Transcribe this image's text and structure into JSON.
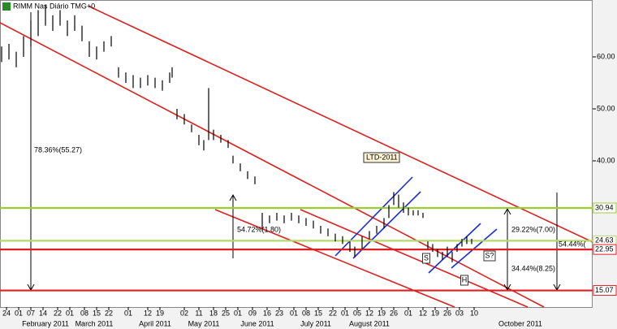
{
  "chart_data": {
    "type": "ohlc",
    "title": "RIMM Nas Diário TMG+0",
    "xlim": [
      -2.67,
      240.67
    ],
    "ylim": [
      11.875,
      70.94
    ],
    "yticks": [
      {
        "value": 40,
        "label": "40.00"
      },
      {
        "value": 50,
        "label": "50.00"
      },
      {
        "value": 60,
        "label": "60.00"
      }
    ],
    "xticks": [
      {
        "value": 0,
        "label": "24"
      },
      {
        "value": 5,
        "label": "01"
      },
      {
        "value": 10,
        "label": "07"
      },
      {
        "value": 15,
        "label": "14"
      },
      {
        "value": 21,
        "label": "22"
      },
      {
        "value": 26,
        "label": "01"
      },
      {
        "value": 32,
        "label": "08"
      },
      {
        "value": 37,
        "label": "15"
      },
      {
        "value": 42,
        "label": "22"
      },
      {
        "value": 50,
        "label": "01"
      },
      {
        "value": 58,
        "label": "12"
      },
      {
        "value": 63,
        "label": "19"
      },
      {
        "value": 73,
        "label": "02"
      },
      {
        "value": 79,
        "label": "11"
      },
      {
        "value": 85,
        "label": "18"
      },
      {
        "value": 90,
        "label": "25"
      },
      {
        "value": 95,
        "label": "01"
      },
      {
        "value": 101,
        "label": "09"
      },
      {
        "value": 107,
        "label": "16"
      },
      {
        "value": 112,
        "label": "23"
      },
      {
        "value": 118,
        "label": "01"
      },
      {
        "value": 123,
        "label": "08"
      },
      {
        "value": 128,
        "label": "15"
      },
      {
        "value": 134,
        "label": "22"
      },
      {
        "value": 139,
        "label": "01"
      },
      {
        "value": 144,
        "label": "05"
      },
      {
        "value": 149,
        "label": "12"
      },
      {
        "value": 154,
        "label": "19"
      },
      {
        "value": 159,
        "label": "26"
      },
      {
        "value": 165,
        "label": "01"
      },
      {
        "value": 171,
        "label": "12"
      },
      {
        "value": 176,
        "label": "19"
      },
      {
        "value": 181,
        "label": "26"
      },
      {
        "value": 186,
        "label": "03"
      },
      {
        "value": 192,
        "label": "10"
      }
    ],
    "months": [
      {
        "value": 16,
        "label": "February 2011"
      },
      {
        "value": 36,
        "label": "March 2011"
      },
      {
        "value": 61,
        "label": "April 2011"
      },
      {
        "value": 81,
        "label": "May 2011"
      },
      {
        "value": 103,
        "label": "June 2011"
      },
      {
        "value": 127,
        "label": "July 2011"
      },
      {
        "value": 149,
        "label": "August 2011"
      },
      {
        "value": 211,
        "label": "October 2011"
      }
    ],
    "color": "#000000",
    "x": [
      -2,
      1,
      4,
      7,
      10,
      13,
      16,
      19,
      22,
      25,
      28,
      31,
      34,
      37,
      40,
      43,
      46,
      49,
      52,
      55,
      58,
      61,
      64,
      67,
      68,
      70,
      73,
      76,
      79,
      81,
      83,
      85,
      88,
      91,
      93,
      96,
      99,
      102,
      105,
      108,
      111,
      114,
      117,
      120,
      123,
      126,
      129,
      132,
      135,
      138,
      141,
      143,
      146,
      149,
      152,
      155,
      157,
      159,
      161,
      163,
      165,
      167,
      169,
      171,
      173,
      175,
      177,
      179,
      181,
      183,
      185,
      187,
      189,
      191
    ],
    "high": [
      62,
      62.5,
      61,
      64,
      67,
      69,
      70,
      68,
      69,
      67,
      68,
      66,
      63,
      62,
      63,
      64,
      58,
      57,
      56.5,
      56,
      56.5,
      56,
      55.5,
      57,
      58,
      50,
      49,
      47,
      45,
      44,
      54,
      46,
      45,
      44,
      41,
      39.5,
      38,
      37,
      30,
      29.5,
      30,
      29.5,
      30,
      29.5,
      29,
      28.5,
      27.5,
      27,
      26,
      25.5,
      24.5,
      23.5,
      25.5,
      26.5,
      27.5,
      29,
      31.5,
      34,
      33.5,
      32,
      31,
      30.5,
      30.5,
      30,
      24.5,
      24,
      23,
      22.5,
      23.5,
      22.5,
      24,
      25,
      25.5,
      25
    ],
    "low": [
      59,
      59.5,
      58,
      60,
      62,
      64,
      66,
      65,
      66,
      64,
      65,
      63,
      60,
      59.5,
      61,
      62,
      56,
      55,
      54,
      54,
      54.5,
      54,
      53.5,
      55,
      56,
      48,
      47,
      45.5,
      43,
      42,
      44,
      44,
      43.5,
      42.5,
      39.5,
      38,
      36.5,
      35.5,
      27,
      28,
      28.5,
      28,
      28.5,
      28,
      27.5,
      27,
      26,
      25.5,
      24.5,
      24,
      22.5,
      21.5,
      23,
      25,
      26,
      27,
      29,
      31.5,
      31,
      30,
      29.5,
      29.5,
      29.5,
      29,
      23,
      22.5,
      21.5,
      21,
      21.5,
      20.5,
      22.5,
      23.5,
      24,
      24
    ],
    "levels": [
      {
        "value": 30.94,
        "color": "#9acd32"
      },
      {
        "value": 24.63,
        "color": "#b5d96a"
      },
      {
        "value": 22.95,
        "color": "#e02020"
      },
      {
        "value": 15.07,
        "color": "#e02020"
      }
    ],
    "annotations": [
      "78.36%(55.27)",
      "54.72%(1.80)",
      "LTD-2011",
      "29.22%(7.00)",
      "34.44%(8.25)",
      "54.44%(",
      "S",
      "S?",
      "H"
    ]
  }
}
